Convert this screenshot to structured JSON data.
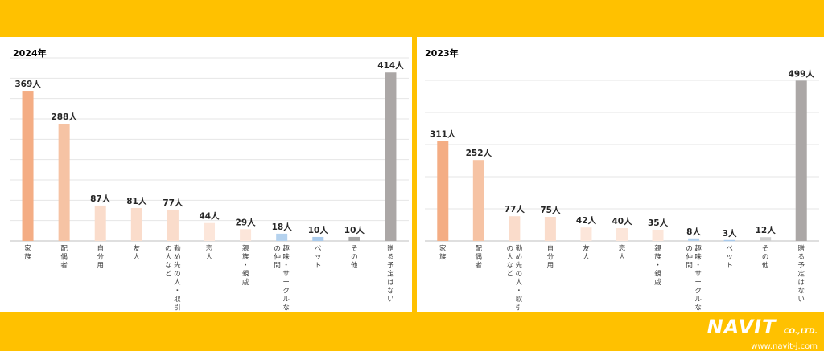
{
  "chart_data": [
    {
      "type": "bar",
      "title": "2024年",
      "ylim": [
        0,
        450
      ],
      "grid": true,
      "categories": [
        "家族",
        "配偶者",
        "自分用",
        "友人",
        "勤め先の人・取引先の人など",
        "恋人",
        "親族・親戚",
        "趣味・サークルなどの仲間",
        "ペット",
        "その他",
        "贈る予定はない"
      ],
      "values": [
        369,
        288,
        87,
        81,
        77,
        44,
        29,
        18,
        10,
        10,
        414
      ],
      "value_labels": [
        "369人",
        "288人",
        "87人",
        "81人",
        "77人",
        "44人",
        "29人",
        "18人",
        "10人",
        "10人",
        "414人"
      ],
      "colors": [
        "#F4AD84",
        "#F6C3A4",
        "#FADCCB",
        "#FADCCB",
        "#FADCCB",
        "#FCE6DA",
        "#FCE6DA",
        "#B5D2EE",
        "#A9CAEB",
        "#A6A6A6",
        "#ABA7A6"
      ]
    },
    {
      "type": "bar",
      "title": "2023年",
      "ylim": [
        0,
        500
      ],
      "grid": true,
      "categories": [
        "家族",
        "配偶者",
        "勤め先の人・取引先の人など",
        "自分用",
        "友人",
        "恋人",
        "親族・親戚",
        "趣味・サークルなどの仲間",
        "ペット",
        "その他",
        "贈る予定はない"
      ],
      "values": [
        311,
        252,
        77,
        75,
        42,
        40,
        35,
        8,
        3,
        12,
        499
      ],
      "value_labels": [
        "311人",
        "252人",
        "77人",
        "75人",
        "42人",
        "40人",
        "35人",
        "8人",
        "3人",
        "12人",
        "499人"
      ],
      "colors": [
        "#F4AD84",
        "#F6C3A4",
        "#FADCCB",
        "#FADCCB",
        "#FCE6DA",
        "#FCE6DA",
        "#FCE6DA",
        "#B5D2EE",
        "#A9CAEB",
        "#D0D0D0",
        "#ABA7A6"
      ]
    }
  ],
  "logo": {
    "name": "NAVIT",
    "suffix": "CO.,LTD.",
    "url": "www.navit-j.com"
  }
}
